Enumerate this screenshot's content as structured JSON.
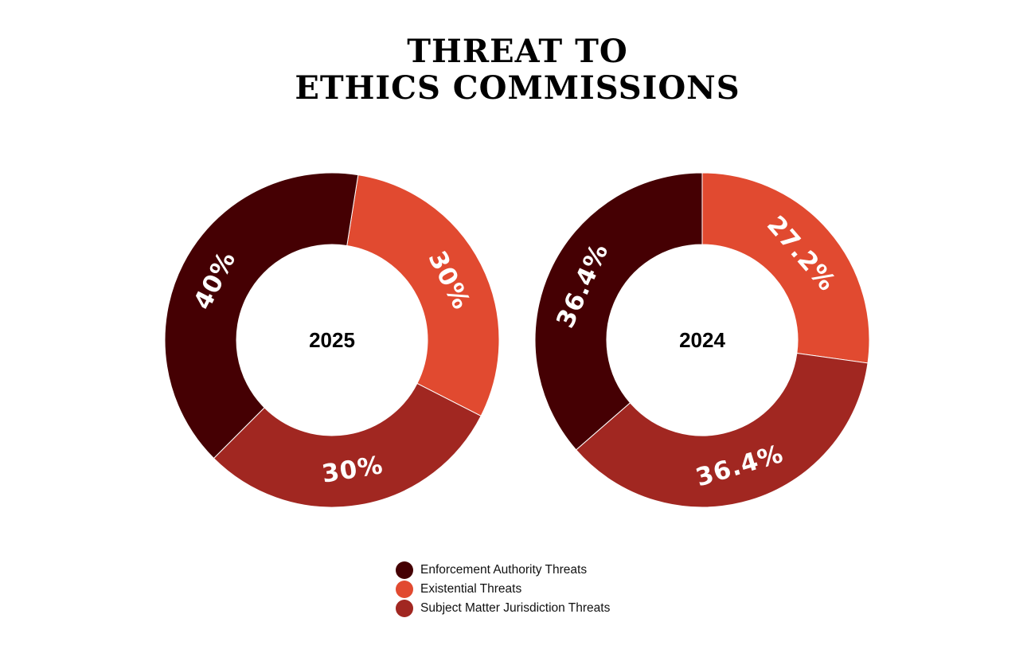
{
  "title_lines": [
    "THREAT TO",
    "ETHICS COMMISSIONS"
  ],
  "chart_data": [
    {
      "type": "pie",
      "variant": "donut",
      "center_label": "2025",
      "categories": [
        "Enforcement Authority Threats",
        "Existential Threats",
        "Subject Matter Jurisdiction Threats"
      ],
      "values": [
        40,
        30,
        30
      ],
      "data_labels": [
        "40%",
        "30%",
        "30%"
      ]
    },
    {
      "type": "pie",
      "variant": "donut",
      "center_label": "2024",
      "categories": [
        "Enforcement Authority Threats",
        "Existential Threats",
        "Subject Matter Jurisdiction Threats"
      ],
      "values": [
        36.4,
        27.2,
        36.4
      ],
      "data_labels": [
        "36.4%",
        "27.2%",
        "36.4%"
      ]
    }
  ],
  "legend": {
    "placement": "bottom",
    "items": [
      {
        "label": "Enforcement Authority Threats",
        "color": "#450003"
      },
      {
        "label": "Existential Threats",
        "color": "#e14a30"
      },
      {
        "label": "Subject Matter Jurisdiction Threats",
        "color": "#a12721"
      }
    ]
  }
}
